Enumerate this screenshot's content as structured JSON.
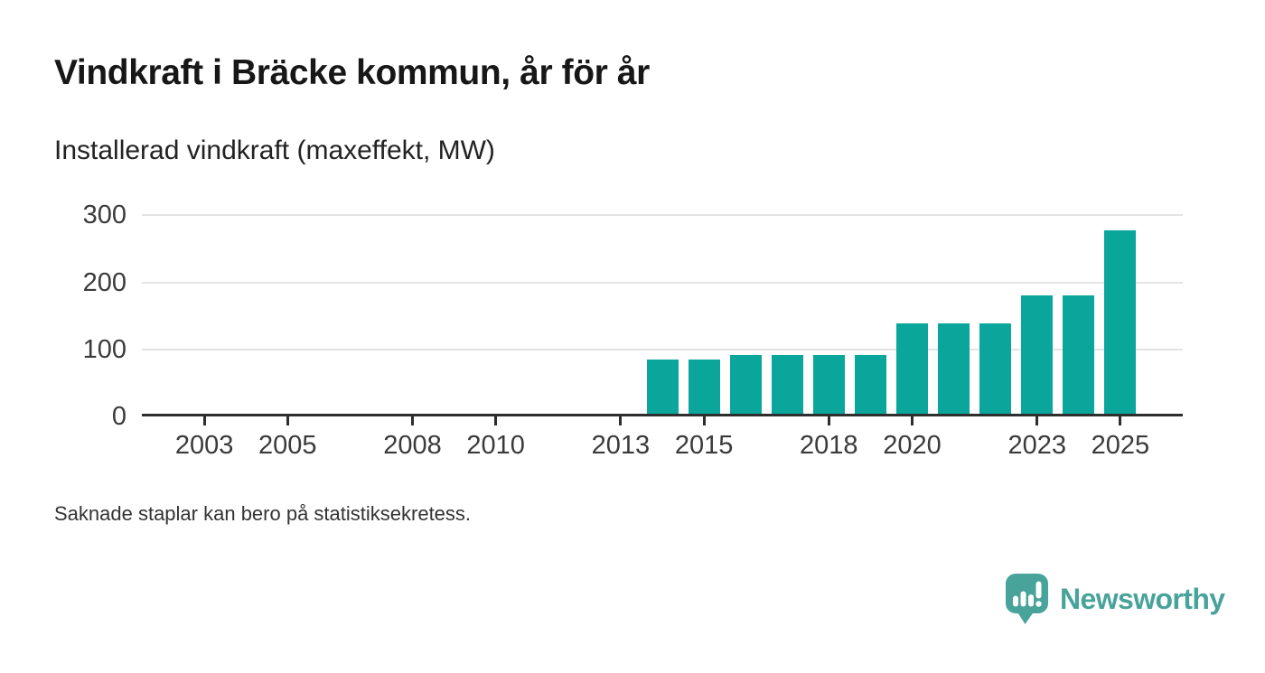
{
  "header": {
    "title": "Vindkraft i Bräcke kommun, år för år",
    "subtitle": "Installerad vindkraft (maxeffekt, MW)"
  },
  "footnote": "Saknade staplar kan bero på statistiksekretess.",
  "branding": {
    "name": "Newsworthy",
    "icon": "bar-chart-speech-bubble-icon"
  },
  "colors": {
    "bar": "#0aa69c",
    "logo": "#48a39b",
    "axis": "#2e2e2e",
    "gridline": "#e4e4e4",
    "tick_text": "#3b3b3b",
    "title_text": "#171717"
  },
  "chart_data": {
    "type": "bar",
    "title": "Vindkraft i Bräcke kommun, år för år",
    "subtitle": "Installerad vindkraft (maxeffekt, MW)",
    "unit": "MW",
    "x": [
      2014,
      2015,
      2016,
      2017,
      2018,
      2019,
      2020,
      2021,
      2022,
      2023,
      2024,
      2025
    ],
    "values": [
      85,
      85,
      92,
      92,
      92,
      92,
      139,
      139,
      139,
      181,
      181,
      278
    ],
    "x_ticks": [
      2003,
      2005,
      2008,
      2010,
      2013,
      2015,
      2018,
      2020,
      2023,
      2025
    ],
    "y_ticks": [
      0,
      100,
      200,
      300
    ],
    "x_domain": [
      2001.5,
      26.5
    ],
    "x_domain_full": [
      2001.5,
      2026.5
    ],
    "ylim": [
      0,
      318
    ],
    "xlabel": "",
    "ylabel": "Installerad vindkraft (maxeffekt, MW)",
    "grid": "horizontal",
    "legend": "none",
    "missing_years_note": "Saknade staplar kan bero på statistiksekretess."
  }
}
